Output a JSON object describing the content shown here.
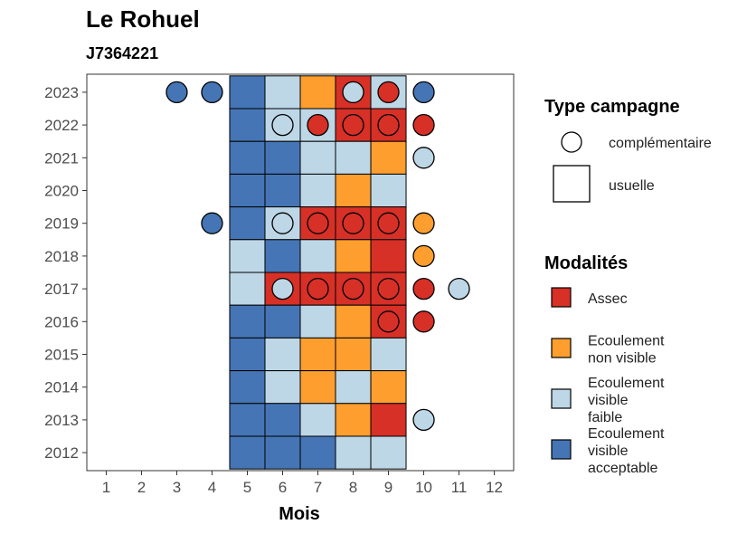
{
  "chart_data": {
    "type": "heatmap",
    "title": "Le Rohuel",
    "subtitle": "J7364221",
    "xlabel": "Mois",
    "ylabel": "",
    "x_ticks": [
      1,
      2,
      3,
      4,
      5,
      6,
      7,
      8,
      9,
      10,
      11,
      12
    ],
    "y_ticks": [
      2012,
      2013,
      2014,
      2015,
      2016,
      2017,
      2018,
      2019,
      2020,
      2021,
      2022,
      2023
    ],
    "colors": {
      "assec": "#d73027",
      "ecoulement_non_visible": "#fd9e2e",
      "ecoulement_visible_faible": "#bdd7e7",
      "ecoulement_visible_acceptable": "#4575b4"
    },
    "legend_type": {
      "title": "Type campagne",
      "items": [
        {
          "shape": "circle",
          "label": "complémentaire"
        },
        {
          "shape": "square",
          "label": "usuelle"
        }
      ]
    },
    "legend_modalites": {
      "title": "Modalités",
      "items": [
        {
          "key": "assec",
          "lines": [
            "Assec"
          ]
        },
        {
          "key": "ecoulement_non_visible",
          "lines": [
            "Ecoulement",
            "non visible"
          ]
        },
        {
          "key": "ecoulement_visible_faible",
          "lines": [
            "Ecoulement",
            "visible",
            "faible"
          ]
        },
        {
          "key": "ecoulement_visible_acceptable",
          "lines": [
            "Ecoulement",
            "visible",
            "acceptable"
          ]
        }
      ]
    },
    "usuelle": [
      {
        "year": 2023,
        "months": {
          "5": "ecoulement_visible_acceptable",
          "6": "ecoulement_visible_faible",
          "7": "ecoulement_non_visible",
          "8": "assec",
          "9": "ecoulement_visible_faible"
        }
      },
      {
        "year": 2022,
        "months": {
          "5": "ecoulement_visible_acceptable",
          "6": "ecoulement_visible_faible",
          "7": "ecoulement_visible_faible",
          "8": "assec",
          "9": "assec"
        }
      },
      {
        "year": 2021,
        "months": {
          "5": "ecoulement_visible_acceptable",
          "6": "ecoulement_visible_acceptable",
          "7": "ecoulement_visible_faible",
          "8": "ecoulement_visible_faible",
          "9": "ecoulement_non_visible"
        }
      },
      {
        "year": 2020,
        "months": {
          "5": "ecoulement_visible_acceptable",
          "6": "ecoulement_visible_acceptable",
          "7": "ecoulement_visible_faible",
          "8": "ecoulement_non_visible",
          "9": "ecoulement_visible_faible"
        }
      },
      {
        "year": 2019,
        "months": {
          "5": "ecoulement_visible_acceptable",
          "6": "ecoulement_visible_faible",
          "7": "assec",
          "8": "assec",
          "9": "assec"
        }
      },
      {
        "year": 2018,
        "months": {
          "5": "ecoulement_visible_faible",
          "6": "ecoulement_visible_acceptable",
          "7": "ecoulement_visible_faible",
          "8": "ecoulement_non_visible",
          "9": "assec"
        }
      },
      {
        "year": 2017,
        "months": {
          "5": "ecoulement_visible_faible",
          "6": "assec",
          "7": "assec",
          "8": "assec",
          "9": "assec"
        }
      },
      {
        "year": 2016,
        "months": {
          "5": "ecoulement_visible_acceptable",
          "6": "ecoulement_visible_acceptable",
          "7": "ecoulement_visible_faible",
          "8": "ecoulement_non_visible",
          "9": "assec"
        }
      },
      {
        "year": 2015,
        "months": {
          "5": "ecoulement_visible_acceptable",
          "6": "ecoulement_visible_faible",
          "7": "ecoulement_non_visible",
          "8": "ecoulement_non_visible",
          "9": "ecoulement_visible_faible"
        }
      },
      {
        "year": 2014,
        "months": {
          "5": "ecoulement_visible_acceptable",
          "6": "ecoulement_visible_faible",
          "7": "ecoulement_non_visible",
          "8": "ecoulement_visible_faible",
          "9": "ecoulement_non_visible"
        }
      },
      {
        "year": 2013,
        "months": {
          "5": "ecoulement_visible_acceptable",
          "6": "ecoulement_visible_acceptable",
          "7": "ecoulement_visible_faible",
          "8": "ecoulement_non_visible",
          "9": "assec"
        }
      },
      {
        "year": 2012,
        "months": {
          "5": "ecoulement_visible_acceptable",
          "6": "ecoulement_visible_acceptable",
          "7": "ecoulement_visible_acceptable",
          "8": "ecoulement_visible_faible",
          "9": "ecoulement_visible_faible"
        }
      }
    ],
    "complementaire": [
      {
        "year": 2023,
        "month": 3,
        "key": "ecoulement_visible_acceptable"
      },
      {
        "year": 2023,
        "month": 4,
        "key": "ecoulement_visible_acceptable"
      },
      {
        "year": 2023,
        "month": 8,
        "key": "ecoulement_visible_faible"
      },
      {
        "year": 2023,
        "month": 9,
        "key": "assec"
      },
      {
        "year": 2023,
        "month": 10,
        "key": "ecoulement_visible_acceptable"
      },
      {
        "year": 2022,
        "month": 6,
        "key": "ecoulement_visible_faible"
      },
      {
        "year": 2022,
        "month": 7,
        "key": "assec"
      },
      {
        "year": 2022,
        "month": 8,
        "key": "assec"
      },
      {
        "year": 2022,
        "month": 9,
        "key": "assec"
      },
      {
        "year": 2022,
        "month": 10,
        "key": "assec"
      },
      {
        "year": 2021,
        "month": 10,
        "key": "ecoulement_visible_faible"
      },
      {
        "year": 2019,
        "month": 4,
        "key": "ecoulement_visible_acceptable"
      },
      {
        "year": 2019,
        "month": 6,
        "key": "ecoulement_visible_faible"
      },
      {
        "year": 2019,
        "month": 7,
        "key": "assec"
      },
      {
        "year": 2019,
        "month": 8,
        "key": "assec"
      },
      {
        "year": 2019,
        "month": 9,
        "key": "assec"
      },
      {
        "year": 2019,
        "month": 10,
        "key": "ecoulement_non_visible"
      },
      {
        "year": 2018,
        "month": 10,
        "key": "ecoulement_non_visible"
      },
      {
        "year": 2017,
        "month": 6,
        "key": "ecoulement_visible_faible"
      },
      {
        "year": 2017,
        "month": 7,
        "key": "assec"
      },
      {
        "year": 2017,
        "month": 8,
        "key": "assec"
      },
      {
        "year": 2017,
        "month": 9,
        "key": "assec"
      },
      {
        "year": 2017,
        "month": 10,
        "key": "assec"
      },
      {
        "year": 2017,
        "month": 11,
        "key": "ecoulement_visible_faible"
      },
      {
        "year": 2016,
        "month": 9,
        "key": "assec"
      },
      {
        "year": 2016,
        "month": 10,
        "key": "assec"
      },
      {
        "year": 2013,
        "month": 10,
        "key": "ecoulement_visible_faible"
      }
    ]
  }
}
